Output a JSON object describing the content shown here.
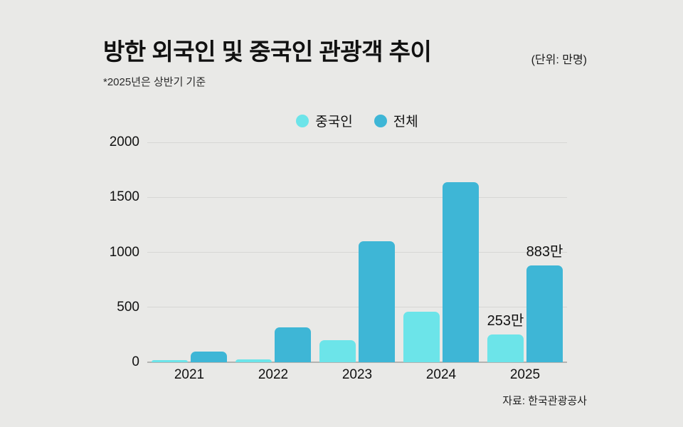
{
  "header": {
    "title": "방한 외국인 및 중국인 관광객 추이",
    "unit_note": "(단위: 만명)",
    "subtitle": "*2025년은 상반기 기준"
  },
  "footer": {
    "source": "자료: 한국관광공사"
  },
  "colors": {
    "background": "#e9e9e7",
    "chinese_series": "#6ce4e9",
    "total_series": "#3eb6d6",
    "gridline": "#d6d6d4",
    "axis_line": "#b3b3b1",
    "text": "#111111"
  },
  "chart_data": {
    "type": "bar",
    "title": "방한 외국인 및 중국인 관광객 추이",
    "unit": "만명",
    "categories": [
      "2021",
      "2022",
      "2023",
      "2024",
      "2025"
    ],
    "series": [
      {
        "name": "중국인",
        "key": "chinese",
        "color": "#6ce4e9",
        "values": [
          17,
          23,
          202,
          460,
          253
        ]
      },
      {
        "name": "전체",
        "key": "total",
        "color": "#3eb6d6",
        "values": [
          97,
          320,
          1103,
          1637,
          883
        ]
      }
    ],
    "data_labels": [
      {
        "category": "2025",
        "series_index": 0,
        "text": "253만"
      },
      {
        "category": "2025",
        "series_index": 1,
        "text": "883만"
      }
    ],
    "xlabel": "",
    "ylabel": "",
    "ylim": [
      0,
      2000
    ],
    "yticks": [
      0,
      500,
      1000,
      1500,
      2000
    ],
    "grid": true,
    "legend_position": "top-center"
  }
}
